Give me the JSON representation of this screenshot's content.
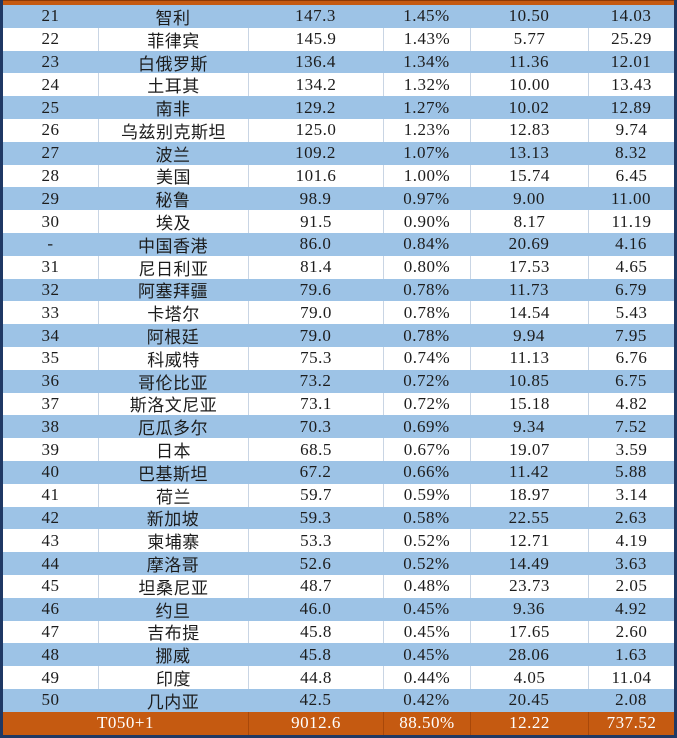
{
  "table": {
    "rows": [
      {
        "cells": [
          "21",
          "智利",
          "147.3",
          "1.45%",
          "10.50",
          "14.03"
        ]
      },
      {
        "cells": [
          "22",
          "菲律宾",
          "145.9",
          "1.43%",
          "5.77",
          "25.29"
        ]
      },
      {
        "cells": [
          "23",
          "白俄罗斯",
          "136.4",
          "1.34%",
          "11.36",
          "12.01"
        ]
      },
      {
        "cells": [
          "24",
          "土耳其",
          "134.2",
          "1.32%",
          "10.00",
          "13.43"
        ]
      },
      {
        "cells": [
          "25",
          "南非",
          "129.2",
          "1.27%",
          "10.02",
          "12.89"
        ]
      },
      {
        "cells": [
          "26",
          "乌兹别克斯坦",
          "125.0",
          "1.23%",
          "12.83",
          "9.74"
        ]
      },
      {
        "cells": [
          "27",
          "波兰",
          "109.2",
          "1.07%",
          "13.13",
          "8.32"
        ]
      },
      {
        "cells": [
          "28",
          "美国",
          "101.6",
          "1.00%",
          "15.74",
          "6.45"
        ]
      },
      {
        "cells": [
          "29",
          "秘鲁",
          "98.9",
          "0.97%",
          "9.00",
          "11.00"
        ]
      },
      {
        "cells": [
          "30",
          "埃及",
          "91.5",
          "0.90%",
          "8.17",
          "11.19"
        ]
      },
      {
        "cells": [
          "-",
          "中国香港",
          "86.0",
          "0.84%",
          "20.69",
          "4.16"
        ]
      },
      {
        "cells": [
          "31",
          "尼日利亚",
          "81.4",
          "0.80%",
          "17.53",
          "4.65"
        ]
      },
      {
        "cells": [
          "32",
          "阿塞拜疆",
          "79.6",
          "0.78%",
          "11.73",
          "6.79"
        ]
      },
      {
        "cells": [
          "33",
          "卡塔尔",
          "79.0",
          "0.78%",
          "14.54",
          "5.43"
        ]
      },
      {
        "cells": [
          "34",
          "阿根廷",
          "79.0",
          "0.78%",
          "9.94",
          "7.95"
        ]
      },
      {
        "cells": [
          "35",
          "科威特",
          "75.3",
          "0.74%",
          "11.13",
          "6.76"
        ]
      },
      {
        "cells": [
          "36",
          "哥伦比亚",
          "73.2",
          "0.72%",
          "10.85",
          "6.75"
        ]
      },
      {
        "cells": [
          "37",
          "斯洛文尼亚",
          "73.1",
          "0.72%",
          "15.18",
          "4.82"
        ]
      },
      {
        "cells": [
          "38",
          "厄瓜多尔",
          "70.3",
          "0.69%",
          "9.34",
          "7.52"
        ]
      },
      {
        "cells": [
          "39",
          "日本",
          "68.5",
          "0.67%",
          "19.07",
          "3.59"
        ]
      },
      {
        "cells": [
          "40",
          "巴基斯坦",
          "67.2",
          "0.66%",
          "11.42",
          "5.88"
        ]
      },
      {
        "cells": [
          "41",
          "荷兰",
          "59.7",
          "0.59%",
          "18.97",
          "3.14"
        ]
      },
      {
        "cells": [
          "42",
          "新加坡",
          "59.3",
          "0.58%",
          "22.55",
          "2.63"
        ]
      },
      {
        "cells": [
          "43",
          "柬埔寨",
          "53.3",
          "0.52%",
          "12.71",
          "4.19"
        ]
      },
      {
        "cells": [
          "44",
          "摩洛哥",
          "52.6",
          "0.52%",
          "14.49",
          "3.63"
        ]
      },
      {
        "cells": [
          "45",
          "坦桑尼亚",
          "48.7",
          "0.48%",
          "23.73",
          "2.05"
        ]
      },
      {
        "cells": [
          "46",
          "约旦",
          "46.0",
          "0.45%",
          "9.36",
          "4.92"
        ]
      },
      {
        "cells": [
          "47",
          "吉布提",
          "45.8",
          "0.45%",
          "17.65",
          "2.60"
        ]
      },
      {
        "cells": [
          "48",
          "挪威",
          "45.8",
          "0.45%",
          "28.06",
          "1.63"
        ]
      },
      {
        "cells": [
          "49",
          "印度",
          "44.8",
          "0.44%",
          "4.05",
          "11.04"
        ]
      },
      {
        "cells": [
          "50",
          "几内亚",
          "42.5",
          "0.42%",
          "20.45",
          "2.08"
        ]
      }
    ],
    "footer": {
      "cells": [
        "T050+1",
        "9012.6",
        "88.50%",
        "12.22",
        "737.52"
      ]
    }
  },
  "colors": {
    "row_blue": "#9dc3e6",
    "row_white": "#ffffff",
    "footer_orange": "#c55a11",
    "edge_navy": "#1f3864",
    "footer_text": "#ffffff",
    "text": "#1c1c1c",
    "divider": "#c9d5e4"
  }
}
